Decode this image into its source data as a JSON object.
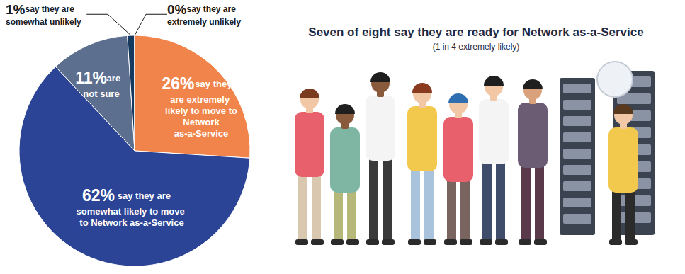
{
  "chart_data": {
    "type": "pie",
    "title": "Seven of eight say they are ready for Network as-a-Service",
    "subtitle": "(1 in 4 extremely likely)",
    "categories": [
      "say they are extremely likely to move to Network as-a-Service",
      "say they are somewhat likely to move to Network as-a-Service",
      "are not sure",
      "say they are somewhat unlikely",
      "say they are extremely unlikely"
    ],
    "values": [
      26,
      62,
      11,
      1,
      0
    ],
    "value_labels": [
      "26%",
      "62%",
      "11%",
      "1%",
      "0%"
    ],
    "colors": [
      "#f0844a",
      "#2b4495",
      "#5d6f8e",
      "#163a5f",
      "#0f2d4d"
    ],
    "data_labels": true
  }
}
